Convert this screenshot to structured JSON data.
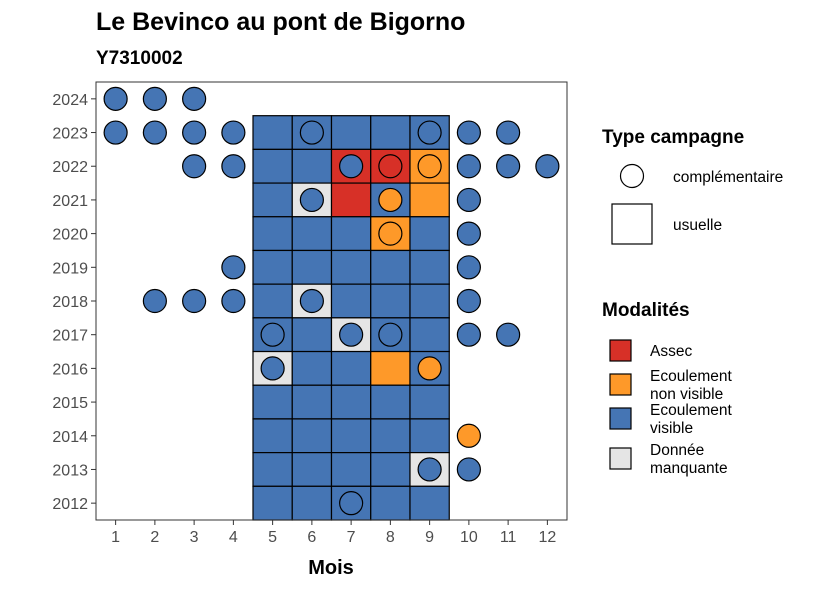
{
  "chart_data": {
    "type": "heatmap",
    "title": "Le Bevinco au pont de Bigorno",
    "subtitle": "Y7310002",
    "xlabel": "Mois",
    "ylabel": "",
    "x_ticks": [
      "1",
      "2",
      "3",
      "4",
      "5",
      "6",
      "7",
      "8",
      "9",
      "10",
      "11",
      "12"
    ],
    "y_ticks": [
      "2012",
      "2013",
      "2014",
      "2015",
      "2016",
      "2017",
      "2018",
      "2019",
      "2020",
      "2021",
      "2022",
      "2023",
      "2024"
    ],
    "xlim": [
      0.5,
      12.5
    ],
    "ylim": [
      2011.5,
      2024.5
    ],
    "grid": false,
    "legend_position": "right",
    "legend_shape": {
      "title": "Type campagne",
      "entries": [
        {
          "key": "complementaire",
          "label": "complémentaire",
          "shape": "circle"
        },
        {
          "key": "usuelle",
          "label": "usuelle",
          "shape": "square"
        }
      ]
    },
    "legend_color": {
      "title": "Modalités",
      "entries": [
        {
          "key": "assec",
          "label_lines": [
            "Assec"
          ],
          "color": "#d73027"
        },
        {
          "key": "nonvisible",
          "label_lines": [
            "Ecoulement",
            "non visible"
          ],
          "color": "#fe9929"
        },
        {
          "key": "visible",
          "label_lines": [
            "Ecoulement",
            "visible"
          ],
          "color": "#4575b4"
        },
        {
          "key": "manquante",
          "label_lines": [
            "Donnée",
            "manquante"
          ],
          "color": "#e5e5e5"
        }
      ]
    },
    "usuelle": [
      {
        "year": 2023,
        "values": {
          "5": "visible",
          "6": "visible",
          "7": "visible",
          "8": "visible",
          "9": "visible"
        }
      },
      {
        "year": 2022,
        "values": {
          "5": "visible",
          "6": "visible",
          "7": "assec",
          "8": "assec",
          "9": "nonvisible"
        }
      },
      {
        "year": 2021,
        "values": {
          "5": "visible",
          "6": "manquante",
          "7": "assec",
          "8": "visible",
          "9": "nonvisible"
        }
      },
      {
        "year": 2020,
        "values": {
          "5": "visible",
          "6": "visible",
          "7": "visible",
          "8": "nonvisible",
          "9": "visible"
        }
      },
      {
        "year": 2019,
        "values": {
          "5": "visible",
          "6": "visible",
          "7": "visible",
          "8": "visible",
          "9": "visible"
        }
      },
      {
        "year": 2018,
        "values": {
          "5": "visible",
          "6": "manquante",
          "7": "visible",
          "8": "visible",
          "9": "visible"
        }
      },
      {
        "year": 2017,
        "values": {
          "5": "visible",
          "6": "visible",
          "7": "manquante",
          "8": "visible",
          "9": "visible"
        }
      },
      {
        "year": 2016,
        "values": {
          "5": "manquante",
          "6": "visible",
          "7": "visible",
          "8": "nonvisible",
          "9": "visible"
        }
      },
      {
        "year": 2015,
        "values": {
          "5": "visible",
          "6": "visible",
          "7": "visible",
          "8": "visible",
          "9": "visible"
        }
      },
      {
        "year": 2014,
        "values": {
          "5": "visible",
          "6": "visible",
          "7": "visible",
          "8": "visible",
          "9": "visible"
        }
      },
      {
        "year": 2013,
        "values": {
          "5": "visible",
          "6": "visible",
          "7": "visible",
          "8": "visible",
          "9": "manquante"
        }
      },
      {
        "year": 2012,
        "values": {
          "5": "visible",
          "6": "visible",
          "7": "visible",
          "8": "visible",
          "9": "visible"
        }
      }
    ],
    "complementaire": [
      {
        "year": 2024,
        "values": {
          "1": "visible",
          "2": "visible",
          "3": "visible"
        }
      },
      {
        "year": 2023,
        "values": {
          "1": "visible",
          "2": "visible",
          "3": "visible",
          "4": "visible",
          "6": "visible",
          "9": "visible",
          "10": "visible",
          "11": "visible"
        }
      },
      {
        "year": 2022,
        "values": {
          "3": "visible",
          "4": "visible",
          "7": "visible",
          "8": "assec",
          "9": "nonvisible",
          "10": "visible",
          "11": "visible",
          "12": "visible"
        }
      },
      {
        "year": 2021,
        "values": {
          "6": "visible",
          "8": "nonvisible",
          "10": "visible"
        }
      },
      {
        "year": 2020,
        "values": {
          "8": "nonvisible",
          "10": "visible"
        }
      },
      {
        "year": 2019,
        "values": {
          "4": "visible",
          "10": "visible"
        }
      },
      {
        "year": 2018,
        "values": {
          "2": "visible",
          "3": "visible",
          "4": "visible",
          "6": "visible",
          "10": "visible"
        }
      },
      {
        "year": 2017,
        "values": {
          "5": "visible",
          "7": "visible",
          "8": "visible",
          "10": "visible",
          "11": "visible"
        }
      },
      {
        "year": 2016,
        "values": {
          "5": "visible",
          "9": "nonvisible"
        }
      },
      {
        "year": 2014,
        "values": {
          "10": "nonvisible"
        }
      },
      {
        "year": 2013,
        "values": {
          "9": "visible",
          "10": "visible"
        }
      },
      {
        "year": 2012,
        "values": {
          "7": "visible"
        }
      }
    ]
  }
}
